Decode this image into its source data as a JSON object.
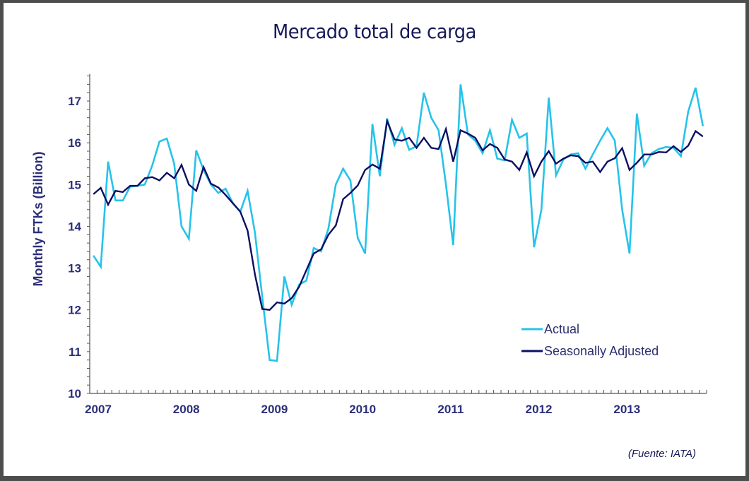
{
  "page": {
    "title": "Mercado total de carga",
    "source": "(Fuente: IATA)"
  },
  "chart_data": {
    "type": "line",
    "title": "Mercado total de carga",
    "xlabel": "",
    "ylabel": "Monthly FTKs (Billion)",
    "ylim": [
      10,
      17.65
    ],
    "yticks": [
      10,
      11,
      12,
      13,
      14,
      15,
      16,
      17
    ],
    "ytick_labels": [
      "10",
      "11",
      "12",
      "13",
      "14",
      "15",
      "16",
      "17"
    ],
    "xtick_labels": [
      "2007",
      "2008",
      "2009",
      "2010",
      "2011",
      "2012",
      "2013"
    ],
    "x_period": "monthly, Jan 2007 – Dec 2013",
    "grid": false,
    "legend_position": "bottom-right",
    "colors": {
      "actual": "#26c3ea",
      "seasonally_adjusted": "#0c0f63",
      "axis": "#555555",
      "text": "#2c2f7a"
    },
    "series": [
      {
        "name": "Actual",
        "color": "#26c3ea",
        "values": [
          13.3,
          13.03,
          15.55,
          14.62,
          14.62,
          14.95,
          14.97,
          15.0,
          15.45,
          16.03,
          16.1,
          15.5,
          14.0,
          13.7,
          15.82,
          15.35,
          15.0,
          14.8,
          14.9,
          14.55,
          14.35,
          14.85,
          13.85,
          12.3,
          10.8,
          10.78,
          12.8,
          12.12,
          12.6,
          12.7,
          13.48,
          13.4,
          13.95,
          15.0,
          15.38,
          15.1,
          13.72,
          13.35,
          16.45,
          15.2,
          16.58,
          15.95,
          16.35,
          15.83,
          15.92,
          17.2,
          16.6,
          16.3,
          15.0,
          13.55,
          17.4,
          16.2,
          16.05,
          15.75,
          16.3,
          15.62,
          15.58,
          16.55,
          16.12,
          16.22,
          13.5,
          14.4,
          17.08,
          15.22,
          15.6,
          15.72,
          15.75,
          15.38,
          15.72,
          16.05,
          16.35,
          16.05,
          14.4,
          13.35,
          16.7,
          15.45,
          15.75,
          15.85,
          15.9,
          15.88,
          15.68,
          16.75,
          17.32,
          16.4
        ]
      },
      {
        "name": "Seasonally Adjusted",
        "color": "#0c0f63",
        "values": [
          14.77,
          14.92,
          14.52,
          14.85,
          14.82,
          14.97,
          14.97,
          15.15,
          15.18,
          15.1,
          15.28,
          15.15,
          15.47,
          15.0,
          14.85,
          15.42,
          15.02,
          14.93,
          14.75,
          14.55,
          14.35,
          13.9,
          12.85,
          12.02,
          12.0,
          12.18,
          12.15,
          12.28,
          12.55,
          12.95,
          13.35,
          13.45,
          13.8,
          14.02,
          14.65,
          14.8,
          14.98,
          15.35,
          15.48,
          15.38,
          16.52,
          16.08,
          16.05,
          16.12,
          15.88,
          16.12,
          15.88,
          15.85,
          16.33,
          15.55,
          16.3,
          16.22,
          16.12,
          15.82,
          15.97,
          15.88,
          15.6,
          15.55,
          15.35,
          15.77,
          15.2,
          15.55,
          15.8,
          15.5,
          15.62,
          15.7,
          15.68,
          15.52,
          15.55,
          15.3,
          15.55,
          15.63,
          15.87,
          15.35,
          15.52,
          15.72,
          15.72,
          15.78,
          15.77,
          15.92,
          15.78,
          15.93,
          16.28,
          16.15
        ]
      }
    ],
    "legend": [
      {
        "label": "Actual",
        "color": "#26c3ea"
      },
      {
        "label": "Seasonally Adjusted",
        "color": "#0c0f63"
      }
    ]
  }
}
